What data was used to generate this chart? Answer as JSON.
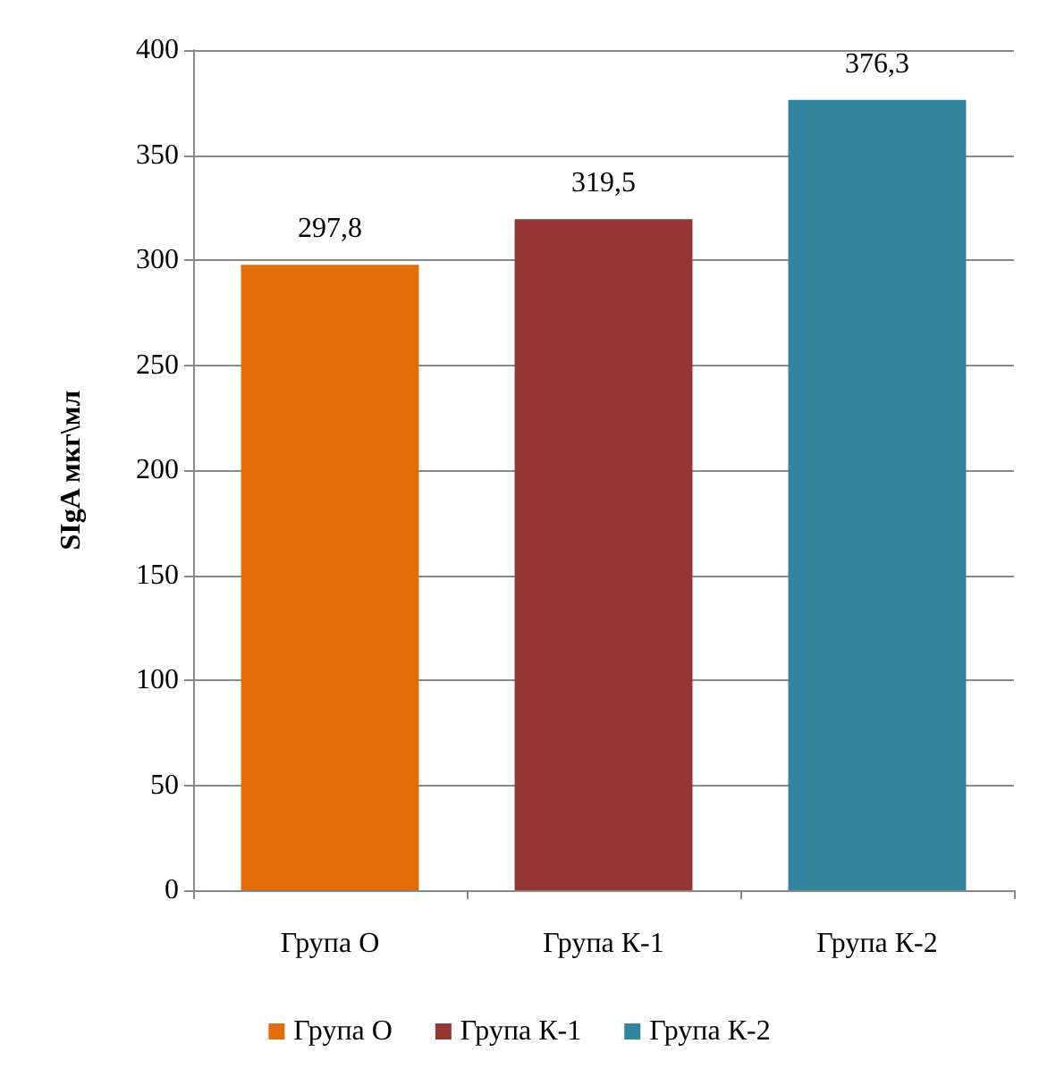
{
  "chart_data": {
    "type": "bar",
    "ylabel": "SIgA мкг\\мл",
    "categories": [
      "Група О",
      "Група К-1",
      "Група К-2"
    ],
    "series": [
      {
        "name": "Група О",
        "color": "#e36c0a",
        "values": [
          297.8,
          null,
          null
        ],
        "value_labels": [
          "297,8",
          null,
          null
        ]
      },
      {
        "name": "Група К-1",
        "color": "#953735",
        "values": [
          null,
          319.5,
          null
        ],
        "value_labels": [
          null,
          "319,5",
          null
        ]
      },
      {
        "name": "Група К-2",
        "color": "#31859c",
        "values": [
          null,
          null,
          376.3
        ],
        "value_labels": [
          null,
          null,
          "376,3"
        ]
      }
    ],
    "ylim": [
      0,
      400
    ],
    "yticks": [
      0,
      50,
      100,
      150,
      200,
      250,
      300,
      350,
      400
    ],
    "grid": "y",
    "legend": "bottom"
  }
}
